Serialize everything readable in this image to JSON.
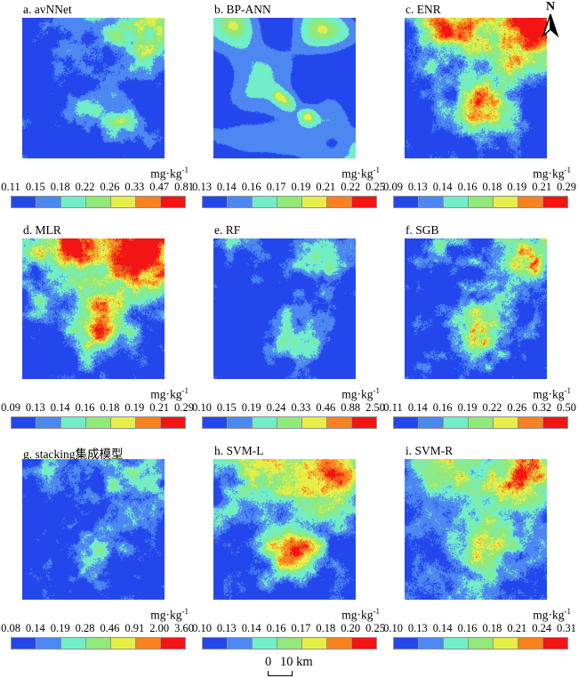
{
  "figure": {
    "north_label": "N",
    "unit_base": "mg·kg",
    "unit_exponent": "-1",
    "scale_bar": {
      "zero": "0",
      "distance": "10 km"
    },
    "colorbar": {
      "colors": [
        "#2347ec",
        "#4d87f1",
        "#71eec7",
        "#90e97a",
        "#e9ee46",
        "#f8821e",
        "#f31414"
      ],
      "border_color": "#8f8f8f"
    }
  },
  "panels": [
    {
      "id": "a",
      "title": "a. avNNet",
      "breaks": [
        "0.11",
        "0.15",
        "0.18",
        "0.22",
        "0.26",
        "0.33",
        "0.47",
        "0.81"
      ]
    },
    {
      "id": "b",
      "title": "b. BP-ANN",
      "breaks": [
        "0.13",
        "0.14",
        "0.16",
        "0.17",
        "0.19",
        "0.21",
        "0.22",
        "0.25"
      ]
    },
    {
      "id": "c",
      "title": "c. ENR",
      "breaks": [
        "0.09",
        "0.13",
        "0.14",
        "0.16",
        "0.18",
        "0.19",
        "0.21",
        "0.29"
      ]
    },
    {
      "id": "d",
      "title": "d. MLR",
      "breaks": [
        "0.09",
        "0.13",
        "0.14",
        "0.16",
        "0.18",
        "0.19",
        "0.21",
        "0.29"
      ]
    },
    {
      "id": "e",
      "title": "e. RF",
      "breaks": [
        "0.10",
        "0.15",
        "0.19",
        "0.24",
        "0.33",
        "0.46",
        "0.88",
        "2.50"
      ]
    },
    {
      "id": "f",
      "title": "f. SGB",
      "breaks": [
        "0.11",
        "0.14",
        "0.16",
        "0.19",
        "0.22",
        "0.26",
        "0.32",
        "0.50"
      ]
    },
    {
      "id": "g",
      "title": "g. stacking集成模型",
      "breaks": [
        "0.08",
        "0.14",
        "0.19",
        "0.28",
        "0.46",
        "0.91",
        "2.00",
        "3.60"
      ]
    },
    {
      "id": "h",
      "title": "h. SVM-L",
      "breaks": [
        "0.10",
        "0.13",
        "0.14",
        "0.16",
        "0.17",
        "0.18",
        "0.20",
        "0.25"
      ]
    },
    {
      "id": "i",
      "title": "i. SVM-R",
      "breaks": [
        "0.10",
        "0.13",
        "0.14",
        "0.16",
        "0.18",
        "0.21",
        "0.24",
        "0.31"
      ]
    }
  ]
}
